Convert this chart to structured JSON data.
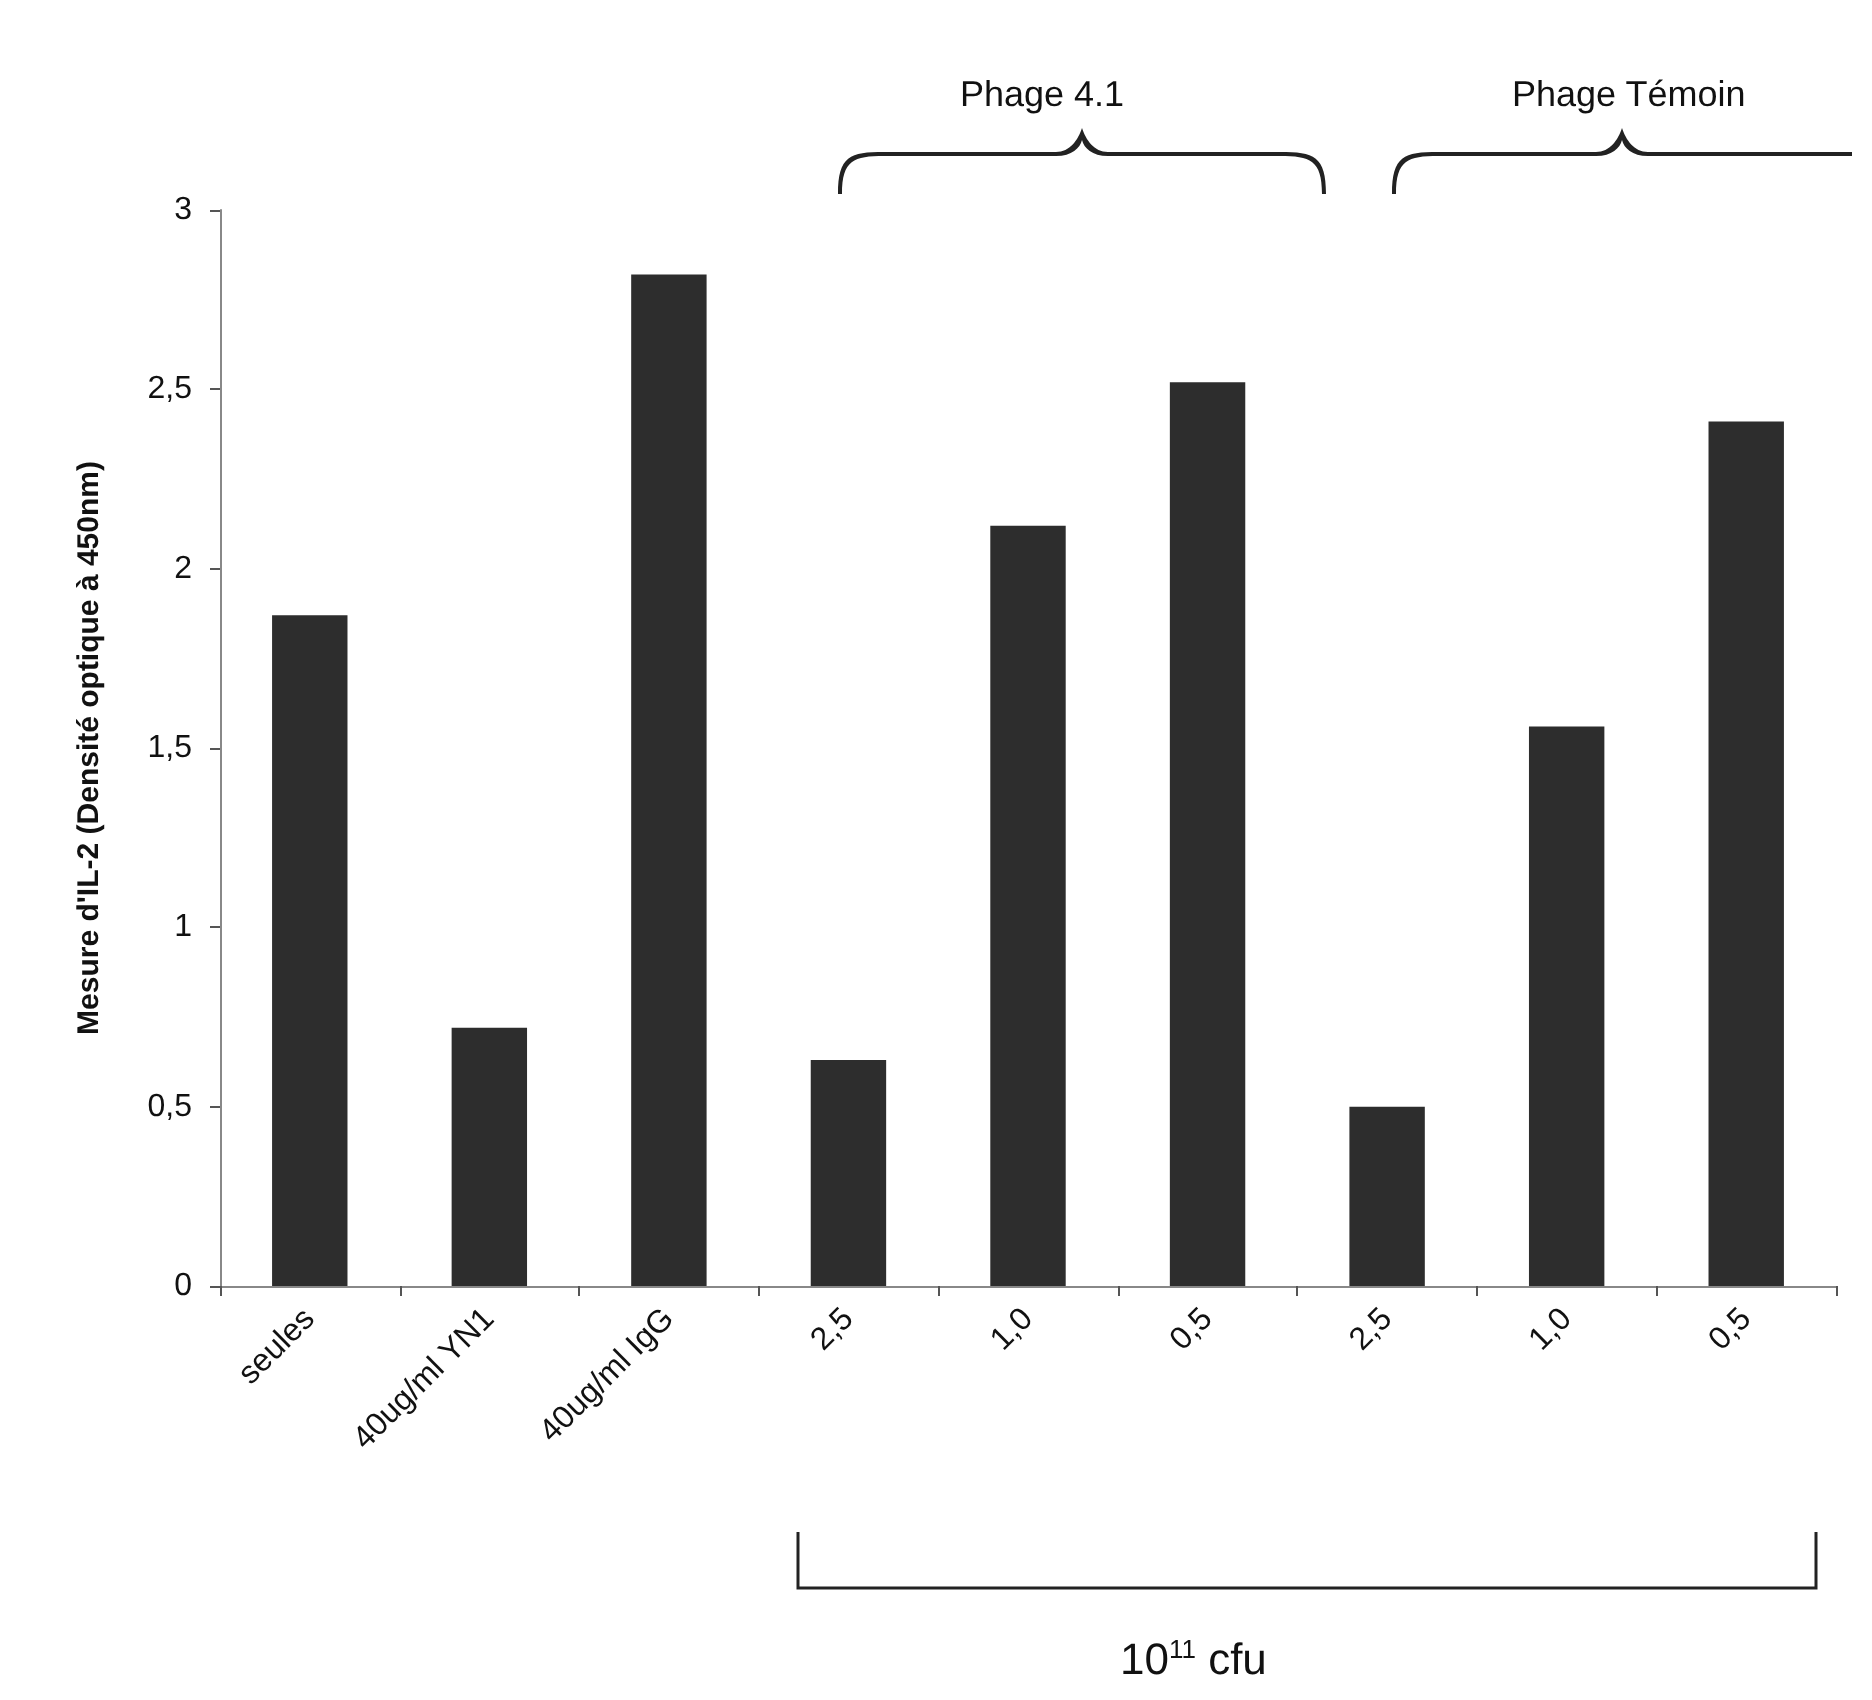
{
  "chart_data": {
    "type": "bar",
    "ylabel": "Mesure d'IL-2 (Densité optique à 450nm)",
    "categories": [
      "seules",
      "40ug/ml YN1",
      "40ug/ml IgG",
      "2,5",
      "1,0",
      "0,5",
      "2,5",
      "1,0",
      "0,5"
    ],
    "values": [
      1.87,
      0.72,
      2.82,
      0.63,
      2.12,
      2.52,
      0.5,
      1.56,
      2.41
    ],
    "color": "#2d2d2d",
    "ylim": [
      0,
      3
    ],
    "yticks": [
      0,
      {
        "value": 0.5,
        "label": "0,5"
      },
      1,
      {
        "value": 1.5,
        "label": "1,5"
      },
      2,
      {
        "value": 2.5,
        "label": "2,5"
      },
      3
    ],
    "grid": false,
    "annotations": [
      "Phage 4.1",
      "Phage Témoin",
      "10$^{11}$ cfu"
    ]
  }
}
